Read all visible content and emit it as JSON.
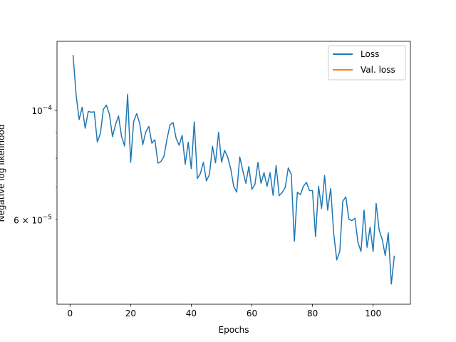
{
  "chart_data": {
    "type": "line",
    "title": "",
    "xlabel": "Epochs",
    "ylabel": "Negative log likelihood",
    "xlim": [
      -4.3,
      112.3
    ],
    "ylim": [
      4.05e-05,
      0.000138
    ],
    "yscale": "log",
    "grid": false,
    "legend_position": "top-right",
    "x_ticks": [
      {
        "value": 0,
        "label": "0"
      },
      {
        "value": 20,
        "label": "20"
      },
      {
        "value": 40,
        "label": "40"
      },
      {
        "value": 60,
        "label": "60"
      },
      {
        "value": 80,
        "label": "80"
      },
      {
        "value": 100,
        "label": "100"
      }
    ],
    "y_major_ticks": [
      {
        "value": 0.0001,
        "base": "10",
        "exponent": "−4"
      }
    ],
    "y_minor_ticks": [
      {
        "value": 6e-05,
        "mantissa": "6",
        "base": "10",
        "exponent": "−5"
      },
      {
        "value": 7e-05,
        "mantissa": "",
        "base": "",
        "exponent": ""
      },
      {
        "value": 8e-05,
        "mantissa": "",
        "base": "",
        "exponent": ""
      },
      {
        "value": 9e-05,
        "mantissa": "",
        "base": "",
        "exponent": ""
      }
    ],
    "series": [
      {
        "name": "Loss",
        "color": "#1f77b4",
        "x": [
          1,
          2,
          3,
          4,
          5,
          6,
          7,
          8,
          9,
          10,
          11,
          12,
          13,
          14,
          15,
          16,
          17,
          18,
          19,
          20,
          21,
          22,
          23,
          24,
          25,
          26,
          27,
          28,
          29,
          30,
          31,
          32,
          33,
          34,
          35,
          36,
          37,
          38,
          39,
          40,
          41,
          42,
          43,
          44,
          45,
          46,
          47,
          48,
          49,
          50,
          51,
          52,
          53,
          54,
          55,
          56,
          57,
          58,
          59,
          60,
          61,
          62,
          63,
          64,
          65,
          66,
          67,
          68,
          69,
          70,
          71,
          72,
          73,
          74,
          75,
          76,
          77,
          78,
          79,
          80,
          81,
          82,
          83,
          84,
          85,
          86,
          87,
          88,
          89,
          90,
          91,
          92,
          93,
          94,
          95,
          96,
          97,
          98,
          99,
          100,
          101,
          102,
          103,
          104,
          105,
          106,
          107
        ],
        "y": [
          0.0001295,
          0.0001075,
          9.58e-05,
          0.0001015,
          9.2e-05,
          9.95e-05,
          9.92e-05,
          9.93e-05,
          8.63e-05,
          8.97e-05,
          0.0001005,
          0.0001025,
          9.82e-05,
          8.85e-05,
          9.35e-05,
          9.75e-05,
          8.85e-05,
          8.47e-05,
          0.0001078,
          7.85e-05,
          9.5e-05,
          9.85e-05,
          9.4e-05,
          8.52e-05,
          9.05e-05,
          9.28e-05,
          8.58e-05,
          8.72e-05,
          7.82e-05,
          7.88e-05,
          8.08e-05,
          8.75e-05,
          9.35e-05,
          9.45e-05,
          8.78e-05,
          8.5e-05,
          8.9e-05,
          7.78e-05,
          8.62e-05,
          7.62e-05,
          9.48e-05,
          7.28e-05,
          7.45e-05,
          7.85e-05,
          7.2e-05,
          7.42e-05,
          8.46e-05,
          7.83e-05,
          9.03e-05,
          7.85e-05,
          8.3e-05,
          8.05e-05,
          7.62e-05,
          7.02e-05,
          6.83e-05,
          8.05e-05,
          7.55e-05,
          7.12e-05,
          7.7e-05,
          6.92e-05,
          7.08e-05,
          7.85e-05,
          7.12e-05,
          7.48e-05,
          7.02e-05,
          7.48e-05,
          6.73e-05,
          7.73e-05,
          6.72e-05,
          6.82e-05,
          6.98e-05,
          7.65e-05,
          7.42e-05,
          5.43e-05,
          6.83e-05,
          6.75e-05,
          7.02e-05,
          7.15e-05,
          6.88e-05,
          6.88e-05,
          5.55e-05,
          7.02e-05,
          6.33e-05,
          7.38e-05,
          6.28e-05,
          6.95e-05,
          5.63e-05,
          4.98e-05,
          5.18e-05,
          6.55e-05,
          6.68e-05,
          6.02e-05,
          5.98e-05,
          6.05e-05,
          5.4e-05,
          5.18e-05,
          6.28e-05,
          5.28e-05,
          5.8e-05,
          5.18e-05,
          6.48e-05,
          5.72e-05,
          5.48e-05,
          5.08e-05,
          5.65e-05,
          4.45e-05,
          5.08e-05
        ]
      },
      {
        "name": "Val. loss",
        "color": "#ff7f0e",
        "x": [],
        "y": []
      }
    ]
  }
}
